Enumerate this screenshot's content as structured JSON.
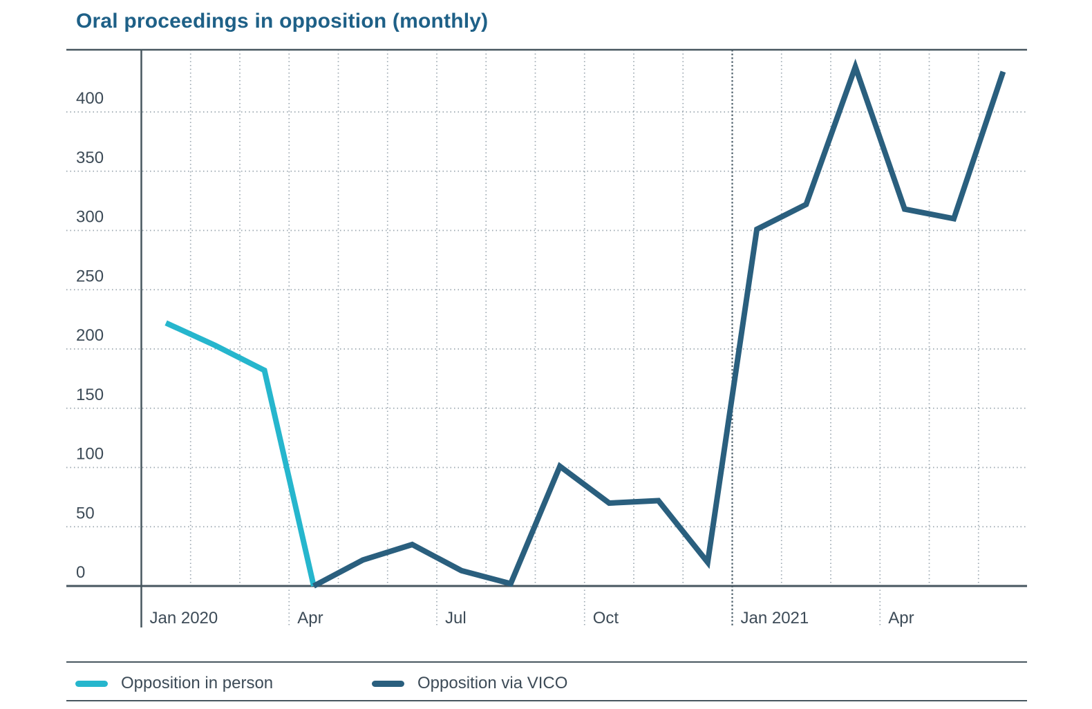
{
  "title": "Oral proceedings in opposition (monthly)",
  "colors": {
    "title": "#1e6087",
    "text": "#3d4b57",
    "axis": "#47565f",
    "grid": "#9aa6af",
    "grid_emphasis": "#4f616c",
    "in_person": "#26b6cd",
    "vico": "#2a5f7e"
  },
  "chart_data": {
    "type": "line",
    "title": "Oral proceedings in opposition (monthly)",
    "x": [
      "Jan 2020",
      "Feb 2020",
      "Mar 2020",
      "Apr 2020",
      "May 2020",
      "Jun 2020",
      "Jul 2020",
      "Aug 2020",
      "Sep 2020",
      "Oct 2020",
      "Nov 2020",
      "Dec 2020",
      "Jan 2021",
      "Feb 2021",
      "Mar 2021",
      "Apr 2021",
      "May 2021",
      "Jun 2021"
    ],
    "x_tick_labels": [
      {
        "label": "Jan 2020",
        "month_index": 0
      },
      {
        "label": "Apr",
        "month_index": 3
      },
      {
        "label": "Jul",
        "month_index": 6
      },
      {
        "label": "Oct",
        "month_index": 9
      },
      {
        "label": "Jan 2021",
        "month_index": 12
      },
      {
        "label": "Apr",
        "month_index": 15
      }
    ],
    "y_ticks": [
      0,
      50,
      100,
      150,
      200,
      250,
      300,
      350,
      400
    ],
    "ylim": [
      0,
      452
    ],
    "grid": "dotted",
    "legend_position": "bottom",
    "series": [
      {
        "name": "Opposition in person",
        "color": "#26b6cd",
        "start_month_index": 0,
        "values": [
          222,
          203,
          182,
          0
        ]
      },
      {
        "name": "Opposition via VICO",
        "color": "#2a5f7e",
        "start_month_index": 3,
        "values": [
          0,
          22,
          35,
          13,
          2,
          101,
          70,
          72,
          20,
          301,
          322,
          438,
          318,
          310,
          434
        ]
      }
    ]
  }
}
